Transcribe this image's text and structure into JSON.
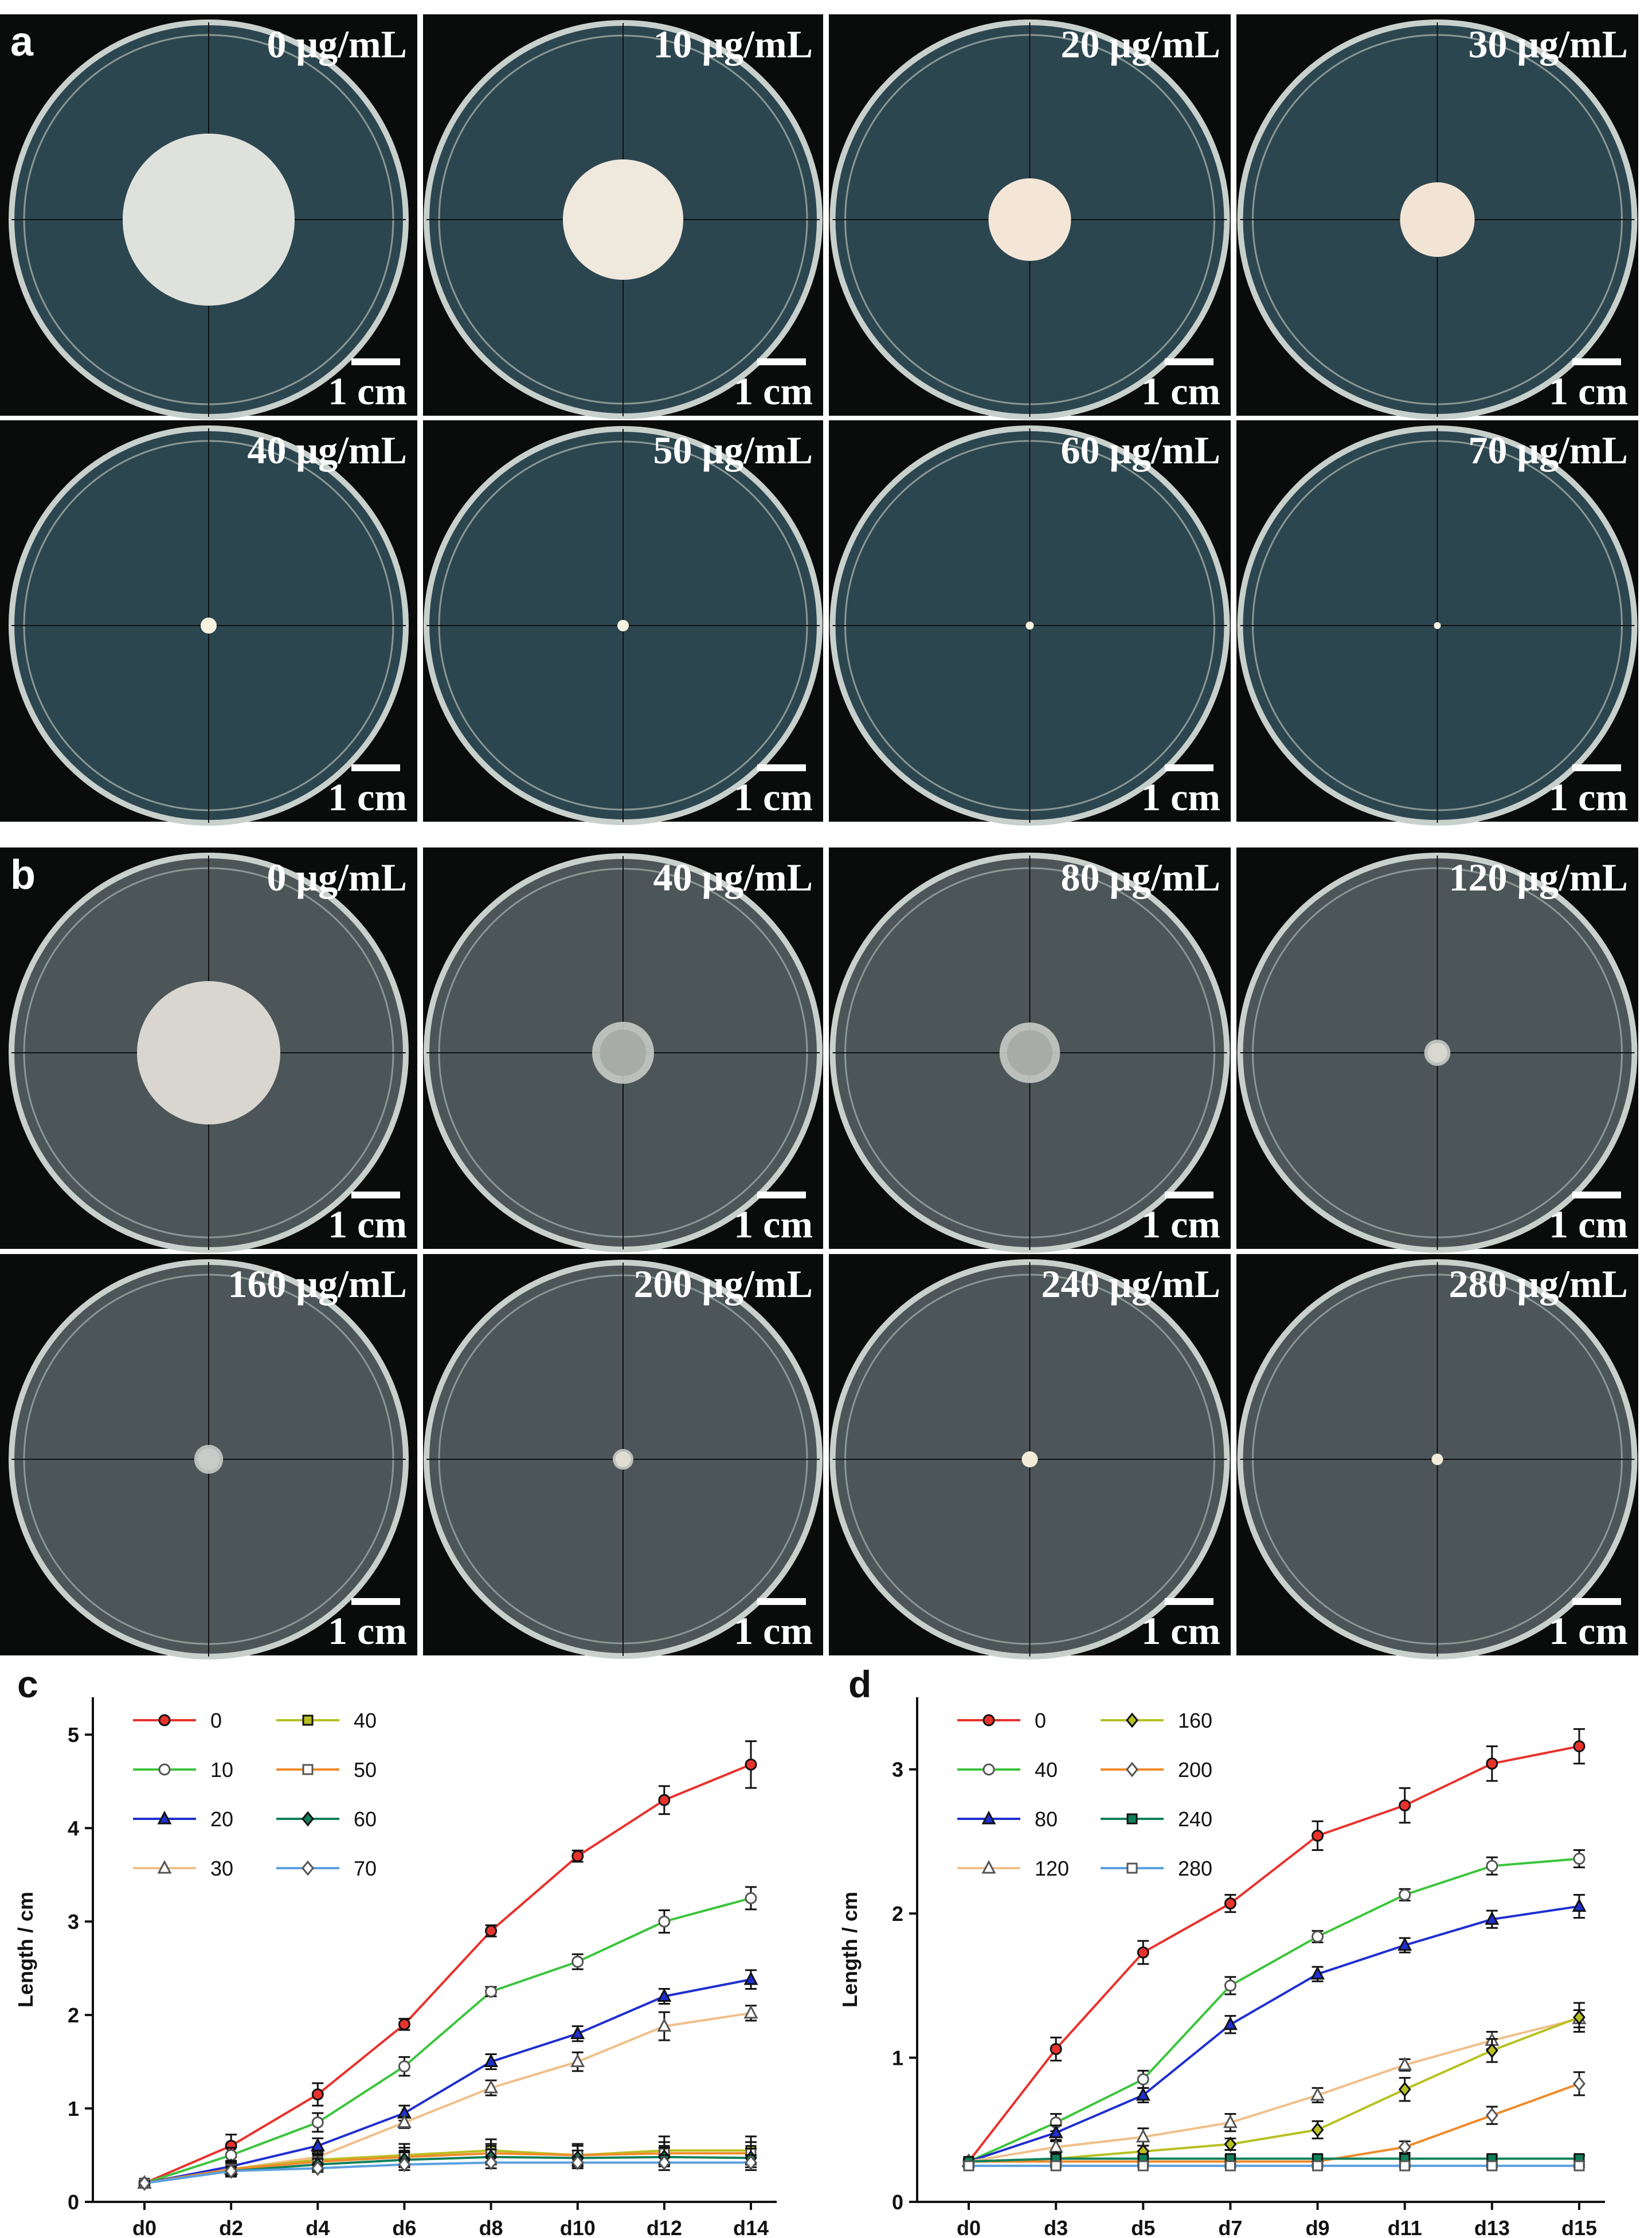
{
  "panels": [
    {
      "label": "a",
      "plates": [
        {
          "concentration": "0 μg/mL",
          "scale_bar": "1 cm"
        },
        {
          "concentration": "10 μg/mL",
          "scale_bar": "1 cm"
        },
        {
          "concentration": "20 μg/mL",
          "scale_bar": "1 cm"
        },
        {
          "concentration": "30 μg/mL",
          "scale_bar": "1 cm"
        },
        {
          "concentration": "40 μg/mL",
          "scale_bar": "1 cm"
        },
        {
          "concentration": "50 μg/mL",
          "scale_bar": "1 cm"
        },
        {
          "concentration": "60 μg/mL",
          "scale_bar": "1 cm"
        },
        {
          "concentration": "70 μg/mL",
          "scale_bar": "1 cm"
        }
      ]
    },
    {
      "label": "b",
      "plates": [
        {
          "concentration": "0 μg/mL",
          "scale_bar": "1 cm"
        },
        {
          "concentration": "40 μg/mL",
          "scale_bar": "1 cm"
        },
        {
          "concentration": "80 μg/mL",
          "scale_bar": "1 cm"
        },
        {
          "concentration": "120 μg/mL",
          "scale_bar": "1 cm"
        },
        {
          "concentration": "160 μg/mL",
          "scale_bar": "1 cm"
        },
        {
          "concentration": "200 μg/mL",
          "scale_bar": "1 cm"
        },
        {
          "concentration": "240 μg/mL",
          "scale_bar": "1 cm"
        },
        {
          "concentration": "280 μg/mL",
          "scale_bar": "1 cm"
        }
      ]
    }
  ],
  "chart_data": [
    {
      "type": "line",
      "label": "c",
      "y_label": "Length / cm",
      "categories": [
        "d0",
        "d2",
        "d4",
        "d6",
        "d8",
        "d10",
        "d12",
        "d14"
      ],
      "ylim": [
        0,
        5.4
      ],
      "yticks": [
        0,
        1,
        2,
        3,
        4,
        5
      ],
      "series": [
        {
          "name": "0",
          "color": "#e8322d",
          "marker": "circle",
          "marker_fill": "filled",
          "values": [
            0.2,
            0.6,
            1.15,
            1.9,
            2.9,
            3.7,
            4.3,
            4.68
          ],
          "errors": [
            0.02,
            0.12,
            0.12,
            0.06,
            0.06,
            0.06,
            0.15,
            0.25
          ]
        },
        {
          "name": "10",
          "color": "#3cc43c",
          "marker": "circle",
          "marker_fill": "open",
          "values": [
            0.2,
            0.5,
            0.85,
            1.45,
            2.25,
            2.57,
            3.0,
            3.25
          ],
          "errors": [
            0.02,
            0.08,
            0.1,
            0.1,
            0.05,
            0.08,
            0.12,
            0.12
          ]
        },
        {
          "name": "20",
          "color": "#1f2fd0",
          "marker": "triangle",
          "marker_fill": "filled",
          "values": [
            0.2,
            0.38,
            0.6,
            0.95,
            1.5,
            1.8,
            2.2,
            2.38
          ],
          "errors": [
            0.02,
            0.06,
            0.08,
            0.08,
            0.08,
            0.08,
            0.08,
            0.1
          ]
        },
        {
          "name": "30",
          "color": "#f0bf8a",
          "marker": "triangle",
          "marker_fill": "open",
          "values": [
            0.2,
            0.35,
            0.48,
            0.85,
            1.22,
            1.5,
            1.88,
            2.02
          ],
          "errors": [
            0.02,
            0.06,
            0.06,
            0.06,
            0.08,
            0.1,
            0.15,
            0.08
          ]
        },
        {
          "name": "40",
          "color": "#b8c021",
          "marker": "square",
          "marker_fill": "filled",
          "values": [
            0.2,
            0.35,
            0.45,
            0.5,
            0.55,
            0.5,
            0.55,
            0.55
          ],
          "errors": [
            0.02,
            0.08,
            0.1,
            0.12,
            0.12,
            0.12,
            0.15,
            0.15
          ]
        },
        {
          "name": "50",
          "color": "#f08a2a",
          "marker": "square",
          "marker_fill": "open",
          "values": [
            0.2,
            0.35,
            0.43,
            0.48,
            0.52,
            0.5,
            0.52,
            0.52
          ],
          "errors": [
            0.02,
            0.06,
            0.08,
            0.1,
            0.1,
            0.1,
            0.12,
            0.12
          ]
        },
        {
          "name": "60",
          "color": "#10805a",
          "marker": "diamond",
          "marker_fill": "filled",
          "values": [
            0.2,
            0.33,
            0.4,
            0.45,
            0.48,
            0.47,
            0.48,
            0.47
          ],
          "errors": [
            0.02,
            0.05,
            0.06,
            0.08,
            0.08,
            0.08,
            0.1,
            0.1
          ]
        },
        {
          "name": "70",
          "color": "#5aa0e0",
          "marker": "diamond",
          "marker_fill": "open",
          "values": [
            0.2,
            0.33,
            0.36,
            0.4,
            0.42,
            0.42,
            0.42,
            0.42
          ],
          "errors": [
            0.02,
            0.04,
            0.04,
            0.06,
            0.06,
            0.06,
            0.08,
            0.08
          ]
        }
      ]
    },
    {
      "type": "line",
      "label": "d",
      "y_label": "Length / cm",
      "categories": [
        "d0",
        "d3",
        "d5",
        "d7",
        "d9",
        "d11",
        "d13",
        "d15"
      ],
      "ylim": [
        0,
        3.5
      ],
      "yticks": [
        0,
        1,
        2,
        3
      ],
      "series": [
        {
          "name": "0",
          "color": "#e8322d",
          "marker": "circle",
          "marker_fill": "filled",
          "values": [
            0.28,
            1.06,
            1.73,
            2.07,
            2.54,
            2.75,
            3.04,
            3.16
          ],
          "errors": [
            0.02,
            0.08,
            0.08,
            0.06,
            0.1,
            0.12,
            0.12,
            0.12
          ]
        },
        {
          "name": "40",
          "color": "#3cc43c",
          "marker": "circle",
          "marker_fill": "open",
          "values": [
            0.28,
            0.55,
            0.85,
            1.5,
            1.84,
            2.13,
            2.33,
            2.38
          ],
          "errors": [
            0.02,
            0.06,
            0.06,
            0.06,
            0.04,
            0.04,
            0.06,
            0.06
          ]
        },
        {
          "name": "80",
          "color": "#1f2fd0",
          "marker": "triangle",
          "marker_fill": "filled",
          "values": [
            0.28,
            0.48,
            0.74,
            1.23,
            1.58,
            1.78,
            1.96,
            2.05
          ],
          "errors": [
            0.02,
            0.05,
            0.05,
            0.06,
            0.05,
            0.05,
            0.06,
            0.08
          ]
        },
        {
          "name": "120",
          "color": "#f0bf8a",
          "marker": "triangle",
          "marker_fill": "open",
          "values": [
            0.28,
            0.38,
            0.45,
            0.55,
            0.74,
            0.95,
            1.12,
            1.27
          ],
          "errors": [
            0.02,
            0.04,
            0.06,
            0.06,
            0.05,
            0.04,
            0.06,
            0.06
          ]
        },
        {
          "name": "160",
          "color": "#b8c021",
          "marker": "diamond",
          "marker_fill": "filled",
          "values": [
            0.28,
            0.3,
            0.35,
            0.4,
            0.5,
            0.78,
            1.05,
            1.28
          ],
          "errors": [
            0.02,
            0.04,
            0.04,
            0.04,
            0.06,
            0.08,
            0.08,
            0.1
          ]
        },
        {
          "name": "200",
          "color": "#f08a2a",
          "marker": "diamond",
          "marker_fill": "open",
          "values": [
            0.28,
            0.28,
            0.28,
            0.28,
            0.28,
            0.38,
            0.6,
            0.82
          ],
          "errors": [
            0.02,
            0.02,
            0.02,
            0.02,
            0.02,
            0.04,
            0.06,
            0.08
          ]
        },
        {
          "name": "240",
          "color": "#10805a",
          "marker": "square",
          "marker_fill": "filled",
          "values": [
            0.28,
            0.3,
            0.3,
            0.3,
            0.3,
            0.3,
            0.3,
            0.3
          ],
          "errors": [
            0.02,
            0.02,
            0.02,
            0.02,
            0.02,
            0.02,
            0.02,
            0.02
          ]
        },
        {
          "name": "280",
          "color": "#5aa0e0",
          "marker": "square",
          "marker_fill": "open",
          "values": [
            0.25,
            0.25,
            0.25,
            0.25,
            0.25,
            0.25,
            0.25,
            0.25
          ],
          "errors": [
            0.01,
            0.01,
            0.01,
            0.01,
            0.01,
            0.01,
            0.01,
            0.01
          ]
        }
      ]
    }
  ]
}
